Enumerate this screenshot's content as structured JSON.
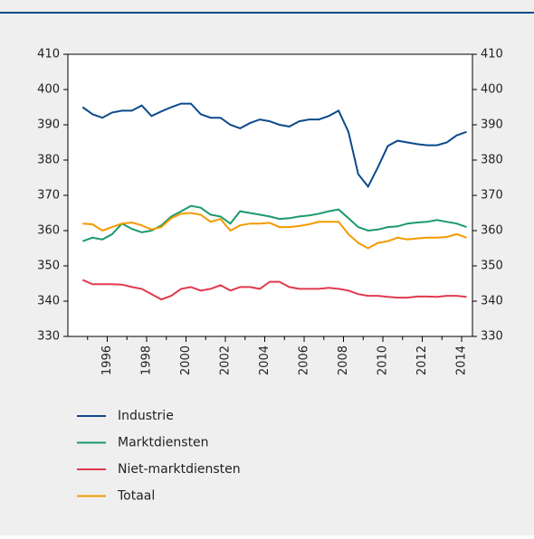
{
  "chart_data": {
    "type": "line",
    "x": [
      1994.75,
      1995.25,
      1995.75,
      1996.25,
      1996.75,
      1997.25,
      1997.75,
      1998.25,
      1998.75,
      1999.25,
      1999.75,
      2000.25,
      2000.75,
      2001.25,
      2001.75,
      2002.25,
      2002.75,
      2003.25,
      2003.75,
      2004.25,
      2004.75,
      2005.25,
      2005.75,
      2006.25,
      2006.75,
      2007.25,
      2007.75,
      2008.25,
      2008.75,
      2009.25,
      2009.75,
      2010.25,
      2010.75,
      2011.25,
      2011.75,
      2012.25,
      2012.75,
      2013.25,
      2013.75,
      2014.25
    ],
    "series": [
      {
        "name": "Industrie",
        "color": "#0b4a8b",
        "values": [
          395,
          393,
          392,
          393.5,
          394,
          394,
          395.5,
          392.5,
          393.8,
          395,
          396,
          396,
          393,
          392,
          392,
          390,
          389,
          390.5,
          391.5,
          391,
          390,
          389.5,
          391,
          391.5,
          391.5,
          392.5,
          394,
          388,
          376,
          372.5,
          378,
          384,
          385.5,
          385,
          384.5,
          384.2,
          384.2,
          385,
          387,
          388
        ]
      },
      {
        "name": "Marktdiensten",
        "color": "#1b9a6b",
        "values": [
          357,
          358,
          357.5,
          359,
          362,
          360.5,
          359.5,
          360,
          361.5,
          364,
          365.5,
          367,
          366.5,
          364.5,
          364,
          362,
          365.5,
          365,
          364.5,
          364,
          363.3,
          363.5,
          364,
          364.3,
          364.8,
          365.5,
          366,
          363.5,
          361,
          360,
          360.3,
          361,
          361.2,
          362,
          362.3,
          362.5,
          363,
          362.5,
          362,
          361
        ]
      },
      {
        "name": "Niet-marktdiensten",
        "color": "#e03a4e",
        "values": [
          346,
          344.8,
          344.8,
          344.8,
          344.7,
          344,
          343.5,
          342,
          340.5,
          341.5,
          343.5,
          344,
          343,
          343.5,
          344.5,
          343,
          344,
          344,
          343.5,
          345.5,
          345.5,
          344,
          343.5,
          343.5,
          343.5,
          343.8,
          343.5,
          343,
          342,
          341.5,
          341.5,
          341.2,
          341,
          341,
          341.3,
          341.3,
          341.2,
          341.5,
          341.5,
          341.2
        ]
      },
      {
        "name": "Totaal",
        "color": "#f39a00",
        "values": [
          362,
          361.8,
          360,
          361,
          362,
          362.3,
          361.5,
          360.3,
          361,
          363.5,
          364.8,
          365,
          364.5,
          362.5,
          363.3,
          360,
          361.5,
          362,
          362,
          362.2,
          361,
          361,
          361.3,
          361.8,
          362.5,
          362.5,
          362.5,
          359,
          356.5,
          355,
          356.5,
          357,
          358,
          357.5,
          357.8,
          358,
          358,
          358.2,
          359,
          358
        ]
      }
    ],
    "xlim": [
      1994,
      2014.55
    ],
    "xticks": [
      1996,
      1998,
      2000,
      2002,
      2004,
      2006,
      2008,
      2010,
      2012,
      2014
    ],
    "xminor": [
      1995,
      1997,
      1999,
      2001,
      2003,
      2005,
      2007,
      2009,
      2011,
      2013
    ],
    "ylim": [
      330,
      410
    ],
    "yticks": [
      330,
      340,
      350,
      360,
      370,
      380,
      390,
      400,
      410
    ],
    "y2lim": [
      330,
      410
    ],
    "y2ticks": [
      330,
      340,
      350,
      360,
      370,
      380,
      390,
      400,
      410
    ],
    "grid": false
  }
}
